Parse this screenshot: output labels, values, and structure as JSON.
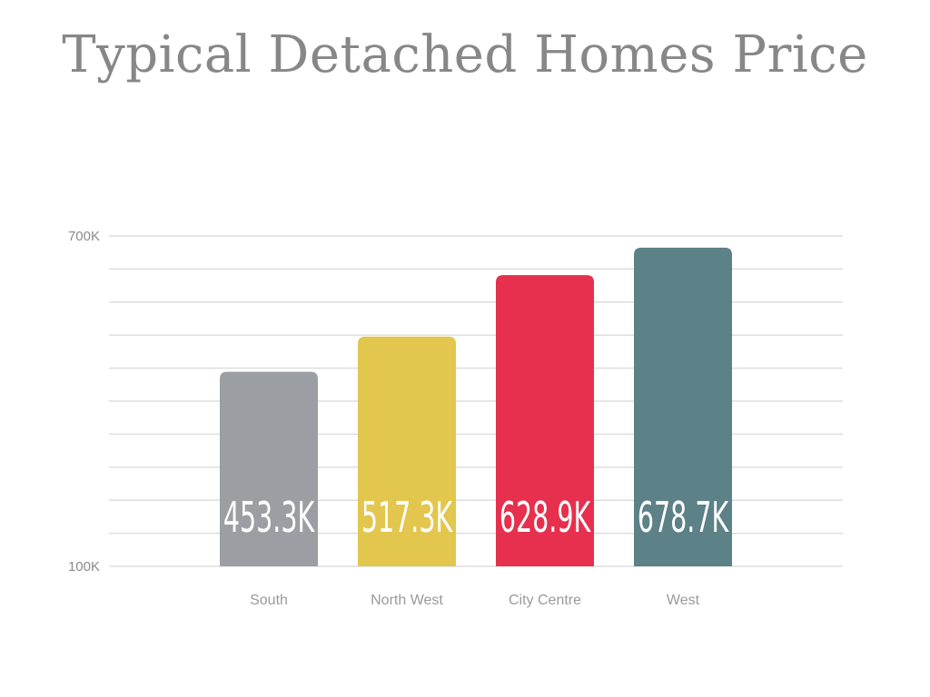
{
  "chart_data": {
    "type": "bar",
    "title": "Typical Detached Homes Price",
    "categories": [
      "South",
      "North West",
      "City Centre",
      "West"
    ],
    "values": [
      453.3,
      517.3,
      628.9,
      678.7
    ],
    "value_labels": [
      "453.3K",
      "517.3K",
      "628.9K",
      "678.7K"
    ],
    "colors": [
      "#9b9fa3",
      "#e3c64d",
      "#e6304d",
      "#5c8187"
    ],
    "ylim": [
      100,
      700
    ],
    "ytick_labels": [
      {
        "value": 100,
        "label": "100K"
      },
      {
        "value": 700,
        "label": "700K"
      }
    ],
    "gridline_values": [
      100,
      160,
      220,
      280,
      340,
      400,
      460,
      520,
      580,
      640,
      700
    ],
    "grid": true,
    "xlabel": "",
    "ylabel": ""
  }
}
